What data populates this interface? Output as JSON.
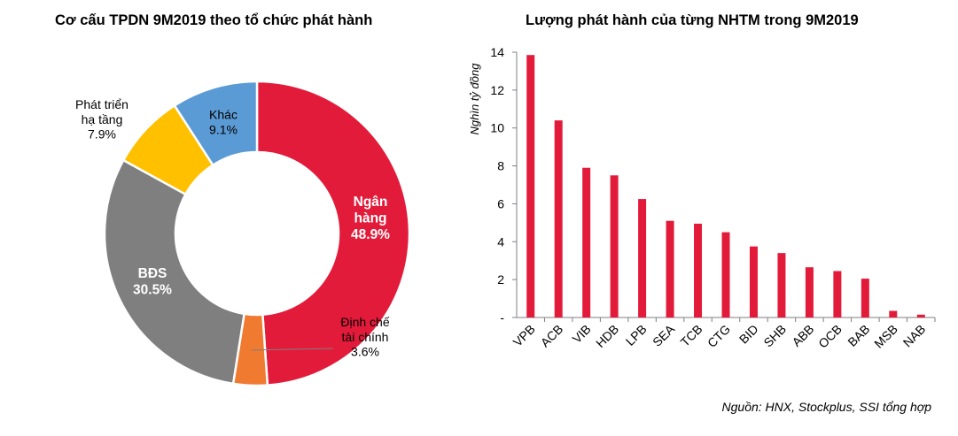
{
  "chart_data": [
    {
      "type": "pie",
      "title": "Cơ cấu TPDN 9M2019 theo tổ chức phát hành",
      "donut": true,
      "slices": [
        {
          "label": [
            "Ngân",
            "hàng"
          ],
          "value": 48.9,
          "value_label": "48.9%",
          "color": "#e31b3a"
        },
        {
          "label": [
            "Định chế",
            "tài chính"
          ],
          "value": 3.6,
          "value_label": "3.6%",
          "color": "#ef7a30"
        },
        {
          "label": [
            "BĐS"
          ],
          "value": 30.5,
          "value_label": "30.5%",
          "color": "#7f7f7f"
        },
        {
          "label": [
            "Phát triển",
            "hạ tầng"
          ],
          "value": 7.9,
          "value_label": "7.9%",
          "color": "#ffc000"
        },
        {
          "label": [
            "Khác"
          ],
          "value": 9.1,
          "value_label": "9.1%",
          "color": "#5b9bd5"
        }
      ]
    },
    {
      "type": "bar",
      "title": "Lượng phát hành của từng NHTM trong 9M2019",
      "ylabel": "Nghìn tỷ đồng",
      "ylim": [
        0,
        14
      ],
      "yticks": [
        0,
        2,
        4,
        6,
        8,
        10,
        12,
        14
      ],
      "yticklabels": [
        "-",
        "2",
        "4",
        "6",
        "8",
        "10",
        "12",
        "14"
      ],
      "categories": [
        "VPB",
        "ACB",
        "VIB",
        "HDB",
        "LPB",
        "SEA",
        "TCB",
        "CTG",
        "BID",
        "SHB",
        "ABB",
        "OCB",
        "BAB",
        "MSB",
        "NAB"
      ],
      "values": [
        13.85,
        10.4,
        7.9,
        7.5,
        6.25,
        5.1,
        4.95,
        4.5,
        3.75,
        3.4,
        2.65,
        2.45,
        2.05,
        0.35,
        0.15
      ],
      "color": "#e31b3a"
    }
  ],
  "source": "Nguồn: HNX, Stockplus, SSI tổng hợp"
}
